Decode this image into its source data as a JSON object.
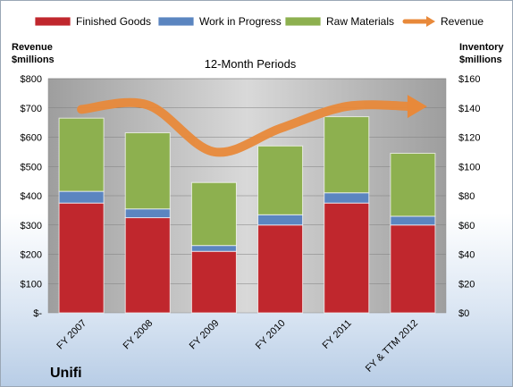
{
  "chart_data": {
    "type": "bar",
    "stacked": true,
    "title": "12-Month Periods",
    "categories": [
      "FY 2007",
      "FY 2008",
      "FY 2009",
      "FY 2010",
      "FY 2011",
      "FY & TTM 2012"
    ],
    "series": [
      {
        "name": "Finished Goods",
        "color": "#c0272d",
        "axis": "right",
        "values": [
          75,
          65,
          42,
          60,
          75,
          60
        ]
      },
      {
        "name": "Work in Progress",
        "color": "#5b85c0",
        "axis": "right",
        "values": [
          8,
          6,
          4,
          7,
          7,
          6
        ]
      },
      {
        "name": "Raw Materials",
        "color": "#8db04f",
        "axis": "right",
        "values": [
          50,
          52,
          43,
          47,
          52,
          43
        ]
      },
      {
        "name": "Revenue",
        "color": "#e8893a",
        "axis": "left",
        "type": "line",
        "values": [
          695,
          710,
          550,
          630,
          705,
          705
        ]
      }
    ],
    "left_axis": {
      "label_line1": "Revenue",
      "label_line2": "$millions",
      "min": 0,
      "max": 800,
      "step": 100,
      "tick_labels": [
        "$-",
        "$100",
        "$200",
        "$300",
        "$400",
        "$500",
        "$600",
        "$700",
        "$800"
      ]
    },
    "right_axis": {
      "label_line1": "Inventory",
      "label_line2": "$millions",
      "min": 0,
      "max": 160,
      "step": 20,
      "tick_labels": [
        "$0",
        "$20",
        "$40",
        "$60",
        "$80",
        "$100",
        "$120",
        "$140",
        "$160"
      ]
    },
    "grid": true,
    "legend": "top"
  },
  "company": "Unifi"
}
